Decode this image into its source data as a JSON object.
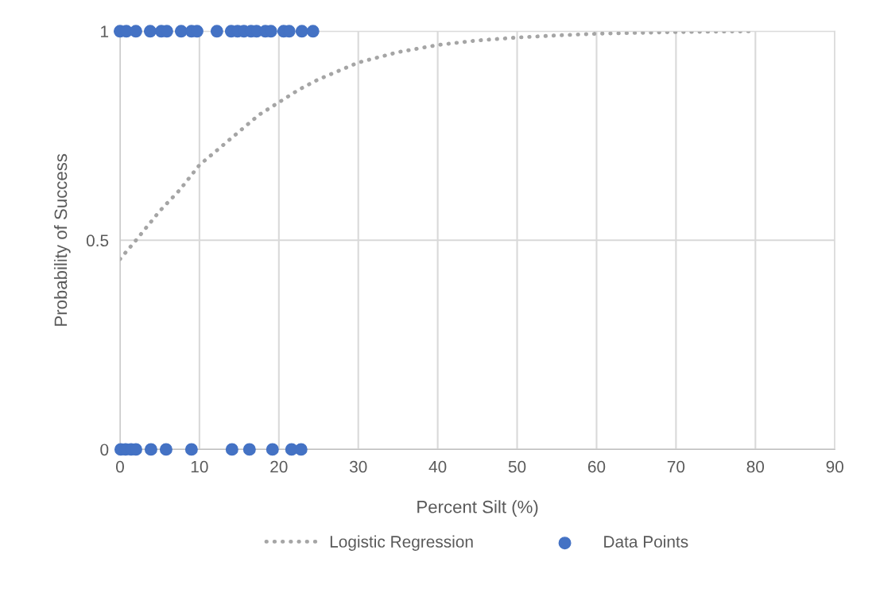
{
  "chart_data": {
    "type": "scatter",
    "xlabel": "Percent Silt (%)",
    "ylabel": "Probability of Success",
    "xlim": [
      0,
      90
    ],
    "xticks": [
      0,
      10,
      20,
      30,
      40,
      50,
      60,
      70,
      80,
      90
    ],
    "ylim": [
      0,
      1
    ],
    "yticks": [
      0,
      0.5,
      1
    ],
    "grid": true,
    "legend": "bottom",
    "series": [
      {
        "name": "Logistic Regression",
        "type": "line",
        "color": "#a5a5a5",
        "line_style": "dotted",
        "marker": "none",
        "x": [
          0,
          2,
          5,
          7.5,
          10,
          12.5,
          15,
          17.5,
          20,
          22.5,
          25,
          30,
          35,
          40,
          45,
          50,
          55,
          60,
          70,
          80
        ],
        "values": [
          0.455,
          0.5,
          0.57,
          0.62,
          0.68,
          0.72,
          0.76,
          0.8,
          0.83,
          0.86,
          0.885,
          0.925,
          0.95,
          0.967,
          0.978,
          0.985,
          0.99,
          0.994,
          0.998,
          1.0
        ]
      },
      {
        "name": "Data Points",
        "color": "#4472c4",
        "marker": "circle",
        "x": [
          0,
          0.8,
          2,
          3.8,
          5.2,
          5.9,
          7.7,
          9.0,
          9.7,
          12.2,
          14.0,
          14.8,
          15.6,
          16.5,
          17.2,
          18.3,
          19.0,
          20.6,
          21.3,
          22.9,
          24.3,
          0.1,
          0.7,
          1.4,
          2.0,
          3.9,
          5.8,
          9.0,
          14.1,
          16.3,
          19.2,
          21.6,
          22.8
        ],
        "values": [
          1,
          1,
          1,
          1,
          1,
          1,
          1,
          1,
          1,
          1,
          1,
          1,
          1,
          1,
          1,
          1,
          1,
          1,
          1,
          1,
          1,
          0,
          0,
          0,
          0,
          0,
          0,
          0,
          0,
          0,
          0,
          0,
          0
        ]
      }
    ]
  }
}
